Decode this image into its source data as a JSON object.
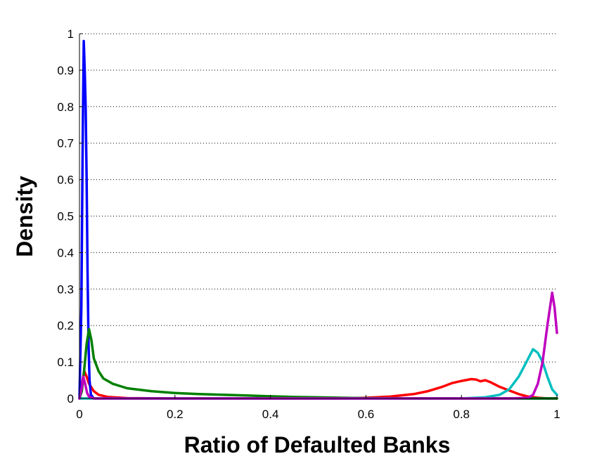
{
  "chart_data": {
    "type": "line",
    "title": "",
    "xlabel": "Ratio of Defaulted Banks",
    "ylabel": "Density",
    "xlim": [
      0,
      1
    ],
    "ylim": [
      0,
      1
    ],
    "x_ticks": [
      "0",
      "0.2",
      "0.4",
      "0.6",
      "0.8",
      "1"
    ],
    "y_ticks": [
      "0",
      "0.1",
      "0.2",
      "0.3",
      "0.4",
      "0.5",
      "0.6",
      "0.7",
      "0.8",
      "0.9",
      "1"
    ],
    "grid": "horizontal dotted",
    "legend": "none",
    "series": [
      {
        "color": "#ff0000",
        "points": [
          [
            0.0,
            0.0
          ],
          [
            0.005,
            0.04
          ],
          [
            0.01,
            0.075
          ],
          [
            0.015,
            0.06
          ],
          [
            0.02,
            0.04
          ],
          [
            0.03,
            0.02
          ],
          [
            0.04,
            0.01
          ],
          [
            0.06,
            0.004
          ],
          [
            0.1,
            0.001
          ],
          [
            0.2,
            0.0
          ],
          [
            0.4,
            0.0
          ],
          [
            0.55,
            0.0
          ],
          [
            0.6,
            0.002
          ],
          [
            0.65,
            0.005
          ],
          [
            0.7,
            0.012
          ],
          [
            0.73,
            0.02
          ],
          [
            0.76,
            0.032
          ],
          [
            0.78,
            0.042
          ],
          [
            0.8,
            0.048
          ],
          [
            0.82,
            0.053
          ],
          [
            0.83,
            0.052
          ],
          [
            0.84,
            0.047
          ],
          [
            0.85,
            0.05
          ],
          [
            0.86,
            0.045
          ],
          [
            0.88,
            0.032
          ],
          [
            0.9,
            0.022
          ],
          [
            0.92,
            0.012
          ],
          [
            0.94,
            0.005
          ],
          [
            0.96,
            0.002
          ],
          [
            0.98,
            0.0
          ],
          [
            1.0,
            0.0
          ]
        ]
      },
      {
        "color": "#0000ff",
        "points": [
          [
            0.0,
            0.0
          ],
          [
            0.004,
            0.25
          ],
          [
            0.007,
            0.75
          ],
          [
            0.009,
            0.98
          ],
          [
            0.011,
            0.9
          ],
          [
            0.013,
            0.8
          ],
          [
            0.015,
            0.6
          ],
          [
            0.017,
            0.35
          ],
          [
            0.019,
            0.15
          ],
          [
            0.021,
            0.05
          ],
          [
            0.024,
            0.01
          ],
          [
            0.03,
            0.0
          ],
          [
            1.0,
            0.0
          ]
        ]
      },
      {
        "color": "#008000",
        "points": [
          [
            0.0,
            0.0
          ],
          [
            0.005,
            0.02
          ],
          [
            0.01,
            0.08
          ],
          [
            0.015,
            0.15
          ],
          [
            0.02,
            0.19
          ],
          [
            0.025,
            0.16
          ],
          [
            0.03,
            0.11
          ],
          [
            0.04,
            0.075
          ],
          [
            0.05,
            0.055
          ],
          [
            0.07,
            0.04
          ],
          [
            0.1,
            0.028
          ],
          [
            0.15,
            0.02
          ],
          [
            0.2,
            0.015
          ],
          [
            0.25,
            0.012
          ],
          [
            0.3,
            0.01
          ],
          [
            0.35,
            0.008
          ],
          [
            0.4,
            0.006
          ],
          [
            0.45,
            0.004
          ],
          [
            0.5,
            0.003
          ],
          [
            0.55,
            0.002
          ],
          [
            0.6,
            0.001
          ],
          [
            0.7,
            0.0
          ],
          [
            1.0,
            0.0
          ]
        ]
      },
      {
        "color": "#00bfbf",
        "points": [
          [
            0.0,
            0.0
          ],
          [
            0.8,
            0.0
          ],
          [
            0.85,
            0.003
          ],
          [
            0.88,
            0.01
          ],
          [
            0.9,
            0.025
          ],
          [
            0.92,
            0.06
          ],
          [
            0.94,
            0.11
          ],
          [
            0.95,
            0.135
          ],
          [
            0.96,
            0.125
          ],
          [
            0.97,
            0.1
          ],
          [
            0.98,
            0.06
          ],
          [
            0.99,
            0.025
          ],
          [
            1.0,
            0.01
          ]
        ]
      },
      {
        "color": "#bf00bf",
        "points": [
          [
            0.0,
            0.0
          ],
          [
            0.005,
            0.03
          ],
          [
            0.008,
            0.06
          ],
          [
            0.012,
            0.04
          ],
          [
            0.016,
            0.015
          ],
          [
            0.02,
            0.005
          ],
          [
            0.03,
            0.0
          ],
          [
            0.9,
            0.0
          ],
          [
            0.94,
            0.002
          ],
          [
            0.95,
            0.01
          ],
          [
            0.96,
            0.04
          ],
          [
            0.97,
            0.1
          ],
          [
            0.98,
            0.2
          ],
          [
            0.99,
            0.29
          ],
          [
            0.995,
            0.25
          ],
          [
            1.0,
            0.18
          ]
        ]
      }
    ]
  }
}
